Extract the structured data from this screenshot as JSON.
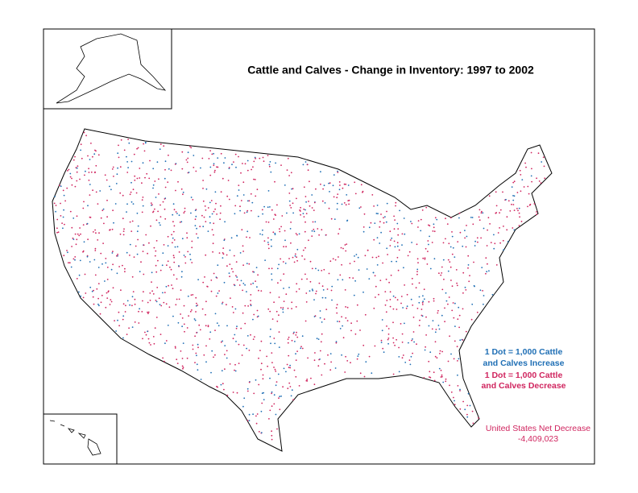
{
  "title": "Cattle and Calves - Change in Inventory:  1997 to 2002",
  "legend": {
    "increase": [
      "1 Dot = 1,000 Cattle",
      "and Calves Increase"
    ],
    "decrease": [
      "1 Dot = 1,000 Cattle",
      "and Calves Decrease"
    ]
  },
  "net": {
    "label": "United States Net Decrease",
    "value": "-4,409,023"
  }
}
